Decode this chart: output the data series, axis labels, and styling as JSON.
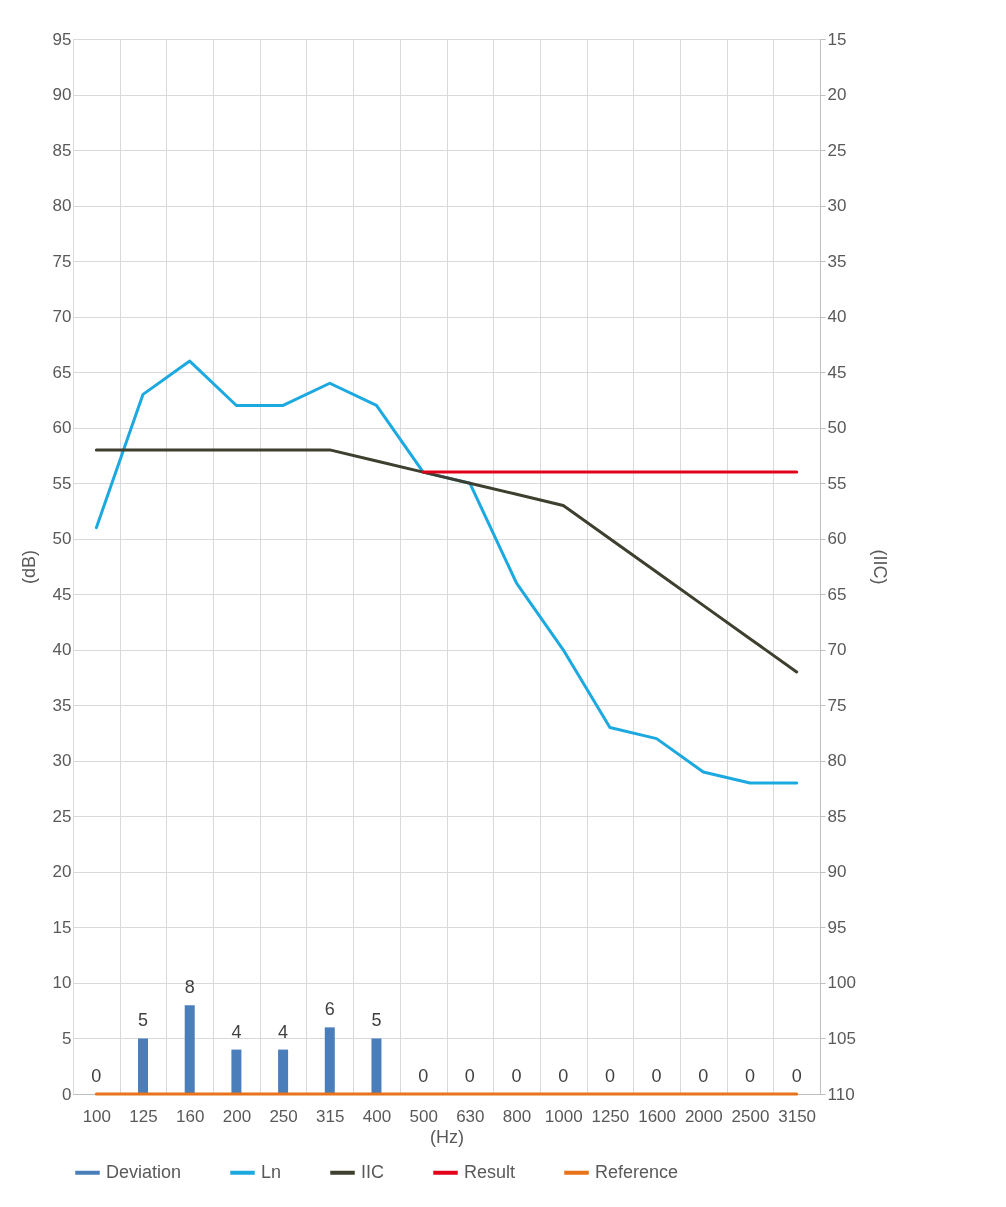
{
  "chart_data": {
    "type": "line",
    "xlabel": "(Hz)",
    "ylabel": "(dB)",
    "y2label": "(IIC)",
    "categories": [
      "100",
      "125",
      "160",
      "200",
      "250",
      "315",
      "400",
      "500",
      "630",
      "800",
      "1000",
      "1250",
      "1600",
      "2000",
      "2500",
      "3150"
    ],
    "ylim": [
      0,
      95
    ],
    "yticks": [
      0,
      5,
      10,
      15,
      20,
      25,
      30,
      35,
      40,
      45,
      50,
      55,
      60,
      65,
      70,
      75,
      80,
      85,
      90,
      95
    ],
    "y2lim": [
      110,
      15
    ],
    "y2ticks": [
      110,
      105,
      100,
      95,
      90,
      85,
      80,
      75,
      70,
      65,
      60,
      55,
      50,
      45,
      40,
      35,
      30,
      25,
      20,
      15
    ],
    "grid": true,
    "legend": "bottom",
    "series": [
      {
        "name": "Deviation",
        "type": "bar",
        "color": "#4a7ebb",
        "values": [
          0,
          5,
          8,
          4,
          4,
          6,
          5,
          0,
          0,
          0,
          0,
          0,
          0,
          0,
          0,
          0
        ],
        "value_labels": [
          "0",
          "5",
          "8",
          "4",
          "4",
          "6",
          "5",
          "0",
          "0",
          "0",
          "0",
          "0",
          "0",
          "0",
          "0",
          "0"
        ]
      },
      {
        "name": "Ln",
        "color": "#1ba9e0",
        "values": [
          51,
          63,
          66,
          62,
          62,
          64,
          62,
          56,
          55,
          46,
          40,
          33,
          32,
          29,
          28,
          28
        ]
      },
      {
        "name": "IIC",
        "color": "#3f3f2f",
        "values": [
          58,
          58,
          58,
          58,
          58,
          58,
          57,
          56,
          55,
          54,
          53,
          50,
          47,
          44,
          41,
          38
        ]
      },
      {
        "name": "Result",
        "color": "#e3001b",
        "values": [
          null,
          null,
          null,
          null,
          null,
          null,
          null,
          56,
          56,
          56,
          56,
          56,
          56,
          56,
          56,
          56
        ]
      },
      {
        "name": "Reference",
        "color": "#e8731a",
        "values": [
          0,
          0,
          0,
          0,
          0,
          0,
          0,
          0,
          0,
          0,
          0,
          0,
          0,
          0,
          0,
          0
        ]
      }
    ]
  }
}
